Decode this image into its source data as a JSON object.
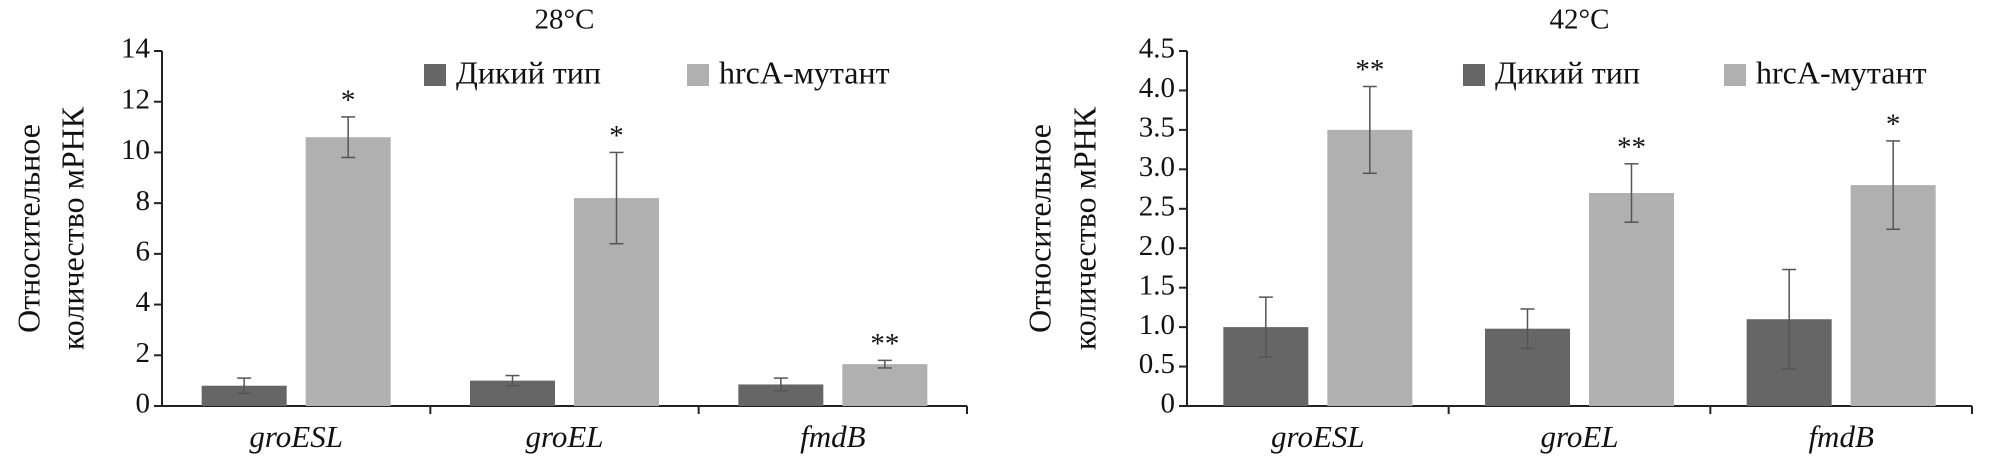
{
  "chart_data": [
    {
      "type": "bar",
      "title": "28°C",
      "ylabel_lines": [
        "Относительное",
        "количество мРНК"
      ],
      "categories": [
        "groESL",
        "groEL",
        "fmdB"
      ],
      "series": [
        {
          "name": "Дикий тип",
          "color": "#666666",
          "values": [
            0.8,
            1.0,
            0.85
          ],
          "errors": [
            0.3,
            0.2,
            0.25
          ]
        },
        {
          "name": "hrcA-мутант",
          "color": "#b0b0b0",
          "values": [
            10.6,
            8.2,
            1.65
          ],
          "errors": [
            0.8,
            1.8,
            0.15
          ],
          "annotations": [
            "*",
            "*",
            "**"
          ]
        }
      ],
      "ylim": [
        0,
        14
      ],
      "yticks": [
        0,
        2,
        4,
        6,
        8,
        10,
        12,
        14
      ],
      "grid": false,
      "legend": "top-right"
    },
    {
      "type": "bar",
      "title": "42°C",
      "ylabel_lines": [
        "Относительное",
        "количество мРНК"
      ],
      "categories": [
        "groESL",
        "groEL",
        "fmdB"
      ],
      "series": [
        {
          "name": "Дикий тип",
          "color": "#666666",
          "values": [
            1.0,
            0.98,
            1.1
          ],
          "errors": [
            0.38,
            0.25,
            0.63
          ]
        },
        {
          "name": "hrcA-мутант",
          "color": "#b0b0b0",
          "values": [
            3.5,
            2.7,
            2.8
          ],
          "errors": [
            0.55,
            0.37,
            0.56
          ],
          "annotations": [
            "**",
            "**",
            "*"
          ]
        }
      ],
      "ylim": [
        0,
        4.5
      ],
      "yticks": [
        0,
        0.5,
        {
          "value": 1,
          "label": "1.0"
        },
        1.5,
        {
          "value": 2,
          "label": "2.0"
        },
        2.5,
        {
          "value": 3,
          "label": "3.0"
        },
        3.5,
        {
          "value": 4,
          "label": "4.0"
        },
        4.5
      ],
      "grid": false,
      "legend": "top-right"
    }
  ]
}
